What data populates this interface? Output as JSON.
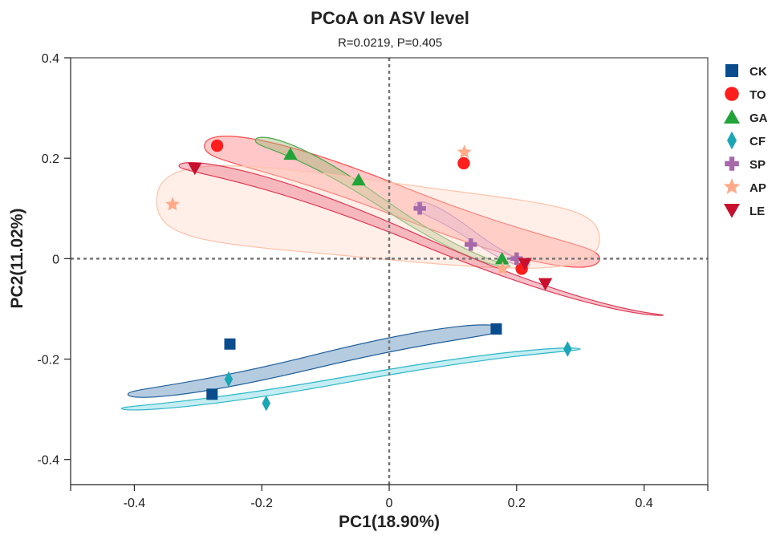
{
  "chart_data": {
    "type": "scatter",
    "title": "PCoA on ASV level",
    "subtitle": "R=0.0219, P=0.405",
    "xlabel": "PC1(18.90%)",
    "ylabel": "PC2(11.02%)",
    "xlim": [
      -0.5,
      0.5
    ],
    "ylim": [
      -0.45,
      0.4
    ],
    "xticks": [
      -0.4,
      -0.2,
      0,
      0.2,
      0.4
    ],
    "xtick_labels": [
      "-0.4",
      "-0.2",
      "0",
      "0.2",
      "0.4"
    ],
    "yticks": [
      -0.4,
      -0.2,
      0,
      0.2,
      0.4
    ],
    "ytick_labels": [
      "-0.4",
      "-0.2",
      "0",
      "0.2",
      "0.4"
    ],
    "reference_lines": {
      "x": 0,
      "y": 0,
      "style": "dotted"
    },
    "legend_position": "right",
    "series": [
      {
        "name": "CK",
        "marker": "square",
        "color": "#0b4d8c",
        "points": [
          [
            -0.25,
            -0.17
          ],
          [
            -0.278,
            -0.27
          ],
          [
            0.168,
            -0.14
          ]
        ],
        "ellipse": {
          "color": "#1f5f9a",
          "fill": "#4f84b6",
          "path": [
            [
              -0.41,
              -0.258
            ],
            [
              0.176,
              -0.125
            ],
            [
              0.176,
              -0.155
            ],
            [
              -0.41,
              -0.282
            ]
          ]
        }
      },
      {
        "name": "TO",
        "marker": "circle",
        "color": "#ff1e1e",
        "points": [
          [
            -0.27,
            0.225
          ],
          [
            0.117,
            0.19
          ],
          [
            0.208,
            -0.02
          ]
        ],
        "ellipse": {
          "color": "#ff4a4a",
          "fill": "#ff7a7a",
          "path": [
            [
              -0.29,
              0.258
            ],
            [
              0.33,
              0.03
            ],
            [
              0.33,
              -0.03
            ],
            [
              -0.29,
              0.19
            ]
          ]
        }
      },
      {
        "name": "GA",
        "marker": "triangle",
        "color": "#22a33a",
        "points": [
          [
            -0.155,
            0.208
          ],
          [
            -0.048,
            0.157
          ],
          [
            0.177,
            0.0
          ]
        ],
        "ellipse": {
          "color": "#4ca84c",
          "fill": "#9ab46f",
          "path": [
            [
              -0.21,
              0.25
            ],
            [
              0.19,
              -0.01
            ],
            [
              0.19,
              -0.02
            ],
            [
              -0.21,
              0.22
            ]
          ]
        }
      },
      {
        "name": "CF",
        "marker": "diamond",
        "color": "#1aa6b4",
        "points": [
          [
            -0.252,
            -0.24
          ],
          [
            -0.193,
            -0.288
          ],
          [
            0.28,
            -0.18
          ]
        ],
        "ellipse": {
          "color": "#2bb5c6",
          "fill": "#6fd3df",
          "path": [
            [
              -0.42,
              -0.292
            ],
            [
              0.3,
              -0.175
            ],
            [
              0.3,
              -0.185
            ],
            [
              -0.42,
              -0.305
            ]
          ]
        }
      },
      {
        "name": "SP",
        "marker": "plus",
        "color": "#a66aaa",
        "points": [
          [
            0.048,
            0.1
          ],
          [
            0.128,
            0.028
          ],
          [
            0.2,
            0.0
          ]
        ],
        "ellipse": {
          "color": "#b87cbb",
          "fill": "#c99bd0",
          "path": [
            [
              0.04,
              0.12
            ],
            [
              0.22,
              -0.005
            ],
            [
              0.22,
              -0.02
            ],
            [
              0.04,
              0.09
            ]
          ]
        }
      },
      {
        "name": "AP",
        "marker": "star",
        "color": "#ffab8a",
        "points": [
          [
            -0.34,
            0.108
          ],
          [
            0.118,
            0.212
          ],
          [
            0.178,
            -0.02
          ]
        ],
        "ellipse": {
          "color": "#ffc2a8",
          "fill": "#ffd8c8",
          "path": [
            [
              -0.365,
              0.2
            ],
            [
              0.33,
              0.11
            ],
            [
              0.33,
              -0.03
            ],
            [
              -0.365,
              0.03
            ]
          ]
        }
      },
      {
        "name": "LE",
        "marker": "triangle-down",
        "color": "#c8102e",
        "points": [
          [
            -0.305,
            0.18
          ],
          [
            0.213,
            -0.01
          ],
          [
            0.245,
            -0.05
          ]
        ],
        "ellipse": {
          "color": "#e03a55",
          "fill": "#ea6b80",
          "path": [
            [
              -0.33,
              0.2
            ],
            [
              0.43,
              -0.11
            ],
            [
              0.43,
              -0.115
            ],
            [
              -0.33,
              0.17
            ]
          ]
        }
      }
    ]
  }
}
